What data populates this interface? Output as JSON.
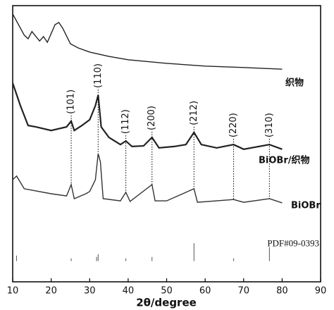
{
  "chart_data": {
    "type": "line",
    "xlabel": "2θ/degree",
    "xlim": [
      10,
      90
    ],
    "xticks": [
      10,
      20,
      30,
      40,
      50,
      60,
      70,
      80,
      90
    ],
    "ylim": [
      0,
      100
    ],
    "series": [
      {
        "name": "织物",
        "color": "#222222",
        "x": [
          10,
          13,
          14,
          15,
          17,
          18,
          19,
          21,
          22,
          23,
          25,
          27,
          30,
          35,
          40,
          50,
          60,
          70,
          80
        ],
        "values": [
          97,
          89.3,
          88,
          90.6,
          87.2,
          88.8,
          86.7,
          93.1,
          93.9,
          91.8,
          86.2,
          84.7,
          83.2,
          81.6,
          80.4,
          79.1,
          78.1,
          77.6,
          77
        ]
      },
      {
        "name": "BiOBr/织物",
        "color": "#222222",
        "x": [
          10,
          12,
          14,
          16,
          20,
          24,
          25.2,
          26,
          28,
          30,
          31.5,
          32.2,
          33,
          35,
          38,
          39.4,
          41,
          44,
          46.2,
          48,
          52,
          55,
          57.1,
          59,
          63,
          67.4,
          70,
          76.7,
          80
        ],
        "values": [
          72,
          63.8,
          56.6,
          56.1,
          54.8,
          56.1,
          58.2,
          54.8,
          56.6,
          58.7,
          63.8,
          67.6,
          56.1,
          52.3,
          49.7,
          51,
          49,
          49.2,
          52.3,
          48.5,
          49,
          49.7,
          54.1,
          49.7,
          48.5,
          49.7,
          48,
          49.7,
          48
        ]
      },
      {
        "name": "BiOBr",
        "color": "#333333",
        "x": [
          10,
          11,
          13,
          20,
          24,
          25.2,
          26,
          29,
          30,
          31.5,
          32.2,
          32.8,
          33.5,
          38,
          39.4,
          40.5,
          46.2,
          47,
          50,
          57.1,
          58,
          67.4,
          70,
          76.7,
          80
        ],
        "values": [
          37,
          38.3,
          33.7,
          31.9,
          31.1,
          35.2,
          30.1,
          31.9,
          32.7,
          37,
          46.4,
          43.4,
          30.1,
          29.3,
          32.4,
          29.1,
          35.2,
          29.3,
          29.3,
          33.7,
          28.8,
          29.8,
          28.8,
          30.1,
          28.6
        ]
      }
    ],
    "reference": {
      "name": "PDF#09-0393",
      "color": "#555555",
      "stick_base": 7.5,
      "x": [
        11,
        25.2,
        31.8,
        32.2,
        39.4,
        46.2,
        57.1,
        67.4,
        76.7
      ],
      "values": [
        9.5,
        8.5,
        9,
        10,
        8.5,
        9,
        14,
        8.5,
        12.5
      ]
    },
    "annotations": [
      {
        "label": "(101)",
        "x": 25.2
      },
      {
        "label": "(110)",
        "x": 32.2
      },
      {
        "label": "(112)",
        "x": 39.4
      },
      {
        "label": "(200)",
        "x": 46.2
      },
      {
        "label": "(212)",
        "x": 57.1
      },
      {
        "label": "(220)",
        "x": 67.4
      },
      {
        "label": "(310)",
        "x": 76.7
      }
    ]
  }
}
